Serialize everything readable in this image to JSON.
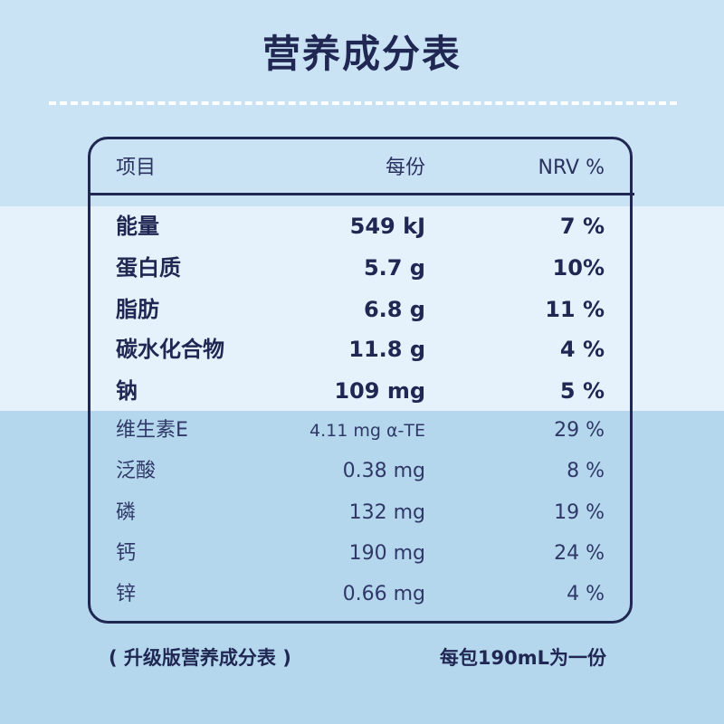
{
  "title": "营养成分表",
  "header": {
    "item": "项目",
    "per_serving": "每份",
    "nrv": "NRV %"
  },
  "rows": [
    {
      "name": "能量",
      "amount": "549 kJ",
      "nrv": "7 %"
    },
    {
      "name": "蛋白质",
      "amount": "5.7 g",
      "nrv": "10%"
    },
    {
      "name": "脂肪",
      "amount": "6.8 g",
      "nrv": "11 %"
    },
    {
      "name": "碳水化合物",
      "amount": "11.8 g",
      "nrv": "4 %"
    },
    {
      "name": "钠",
      "amount": "109 mg",
      "nrv": "5 %"
    },
    {
      "name": "维生素E",
      "amount": "4.11 mg α-TE",
      "nrv": "29 %"
    },
    {
      "name": "泛酸",
      "amount": "0.38 mg",
      "nrv": "8 %"
    },
    {
      "name": "磷",
      "amount": "132 mg",
      "nrv": "19 %"
    },
    {
      "name": "钙",
      "amount": "190 mg",
      "nrv": "24 %"
    },
    {
      "name": "锌",
      "amount": "0.66 mg",
      "nrv": "4 %"
    }
  ],
  "footer": {
    "note": "( 升级版营养成分表 )",
    "serving": "每包190mL为一份"
  },
  "colors": {
    "navy": "#1f2752",
    "band_light": "#e6f2fb",
    "background": "#c9e3f4",
    "background_lower": "#b4d7ee"
  }
}
